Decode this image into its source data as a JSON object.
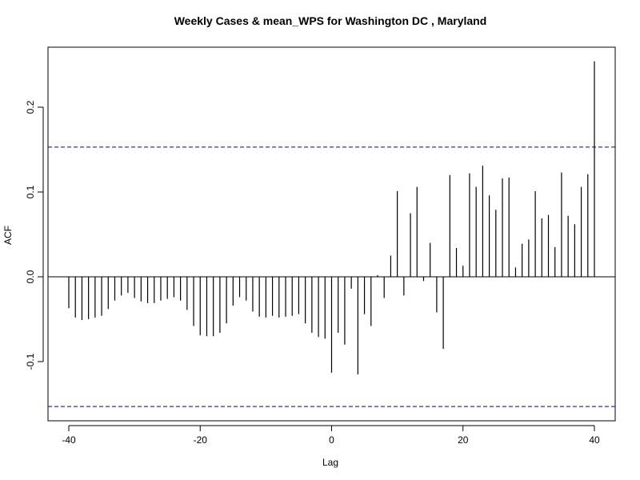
{
  "chart_data": {
    "type": "bar",
    "title": "Weekly Cases & mean_WPS for Washington DC , Maryland",
    "xlabel": "Lag",
    "ylabel": "ACF",
    "xlim": [
      -40,
      40
    ],
    "ylim": [
      -0.16,
      0.26
    ],
    "xticks": [
      {
        "value": -40,
        "label": "-40"
      },
      {
        "value": -20,
        "label": "-20"
      },
      {
        "value": 0,
        "label": "0"
      },
      {
        "value": 20,
        "label": "20"
      },
      {
        "value": 40,
        "label": "40"
      }
    ],
    "yticks": [
      {
        "value": -0.1,
        "label": "-0.1"
      },
      {
        "value": 0.0,
        "label": "0.0"
      },
      {
        "value": 0.1,
        "label": "0.1"
      },
      {
        "value": 0.2,
        "label": "0.2"
      }
    ],
    "confidence_bounds": [
      0.153,
      -0.153
    ],
    "bound_color": "#00008b",
    "x": [
      -40,
      -39,
      -38,
      -37,
      -36,
      -35,
      -34,
      -33,
      -32,
      -31,
      -30,
      -29,
      -28,
      -27,
      -26,
      -25,
      -24,
      -23,
      -22,
      -21,
      -20,
      -19,
      -18,
      -17,
      -16,
      -15,
      -14,
      -13,
      -12,
      -11,
      -10,
      -9,
      -8,
      -7,
      -6,
      -5,
      -4,
      -3,
      -2,
      -1,
      0,
      1,
      2,
      3,
      4,
      5,
      6,
      7,
      8,
      9,
      10,
      11,
      12,
      13,
      14,
      15,
      16,
      17,
      18,
      19,
      20,
      21,
      22,
      23,
      24,
      25,
      26,
      27,
      28,
      29,
      30,
      31,
      32,
      33,
      34,
      35,
      36,
      37,
      38,
      39,
      40
    ],
    "values": [
      -0.037,
      -0.048,
      -0.051,
      -0.05,
      -0.048,
      -0.046,
      -0.038,
      -0.028,
      -0.022,
      -0.019,
      -0.025,
      -0.029,
      -0.031,
      -0.031,
      -0.028,
      -0.026,
      -0.024,
      -0.028,
      -0.039,
      -0.058,
      -0.069,
      -0.07,
      -0.07,
      -0.066,
      -0.055,
      -0.034,
      -0.024,
      -0.028,
      -0.041,
      -0.047,
      -0.048,
      -0.046,
      -0.048,
      -0.047,
      -0.046,
      -0.044,
      -0.055,
      -0.066,
      -0.071,
      -0.073,
      -0.113,
      -0.066,
      -0.08,
      -0.014,
      -0.115,
      -0.044,
      -0.058,
      0.002,
      -0.025,
      0.025,
      0.101,
      -0.022,
      0.075,
      0.106,
      -0.005,
      0.04,
      -0.042,
      -0.085,
      0.12,
      0.034,
      0.013,
      0.122,
      0.106,
      0.131,
      0.096,
      0.079,
      0.116,
      0.117,
      0.011,
      0.039,
      0.044,
      0.101,
      0.069,
      0.073,
      0.035,
      0.123,
      0.072,
      0.062,
      0.106,
      0.121,
      0.254
    ]
  }
}
